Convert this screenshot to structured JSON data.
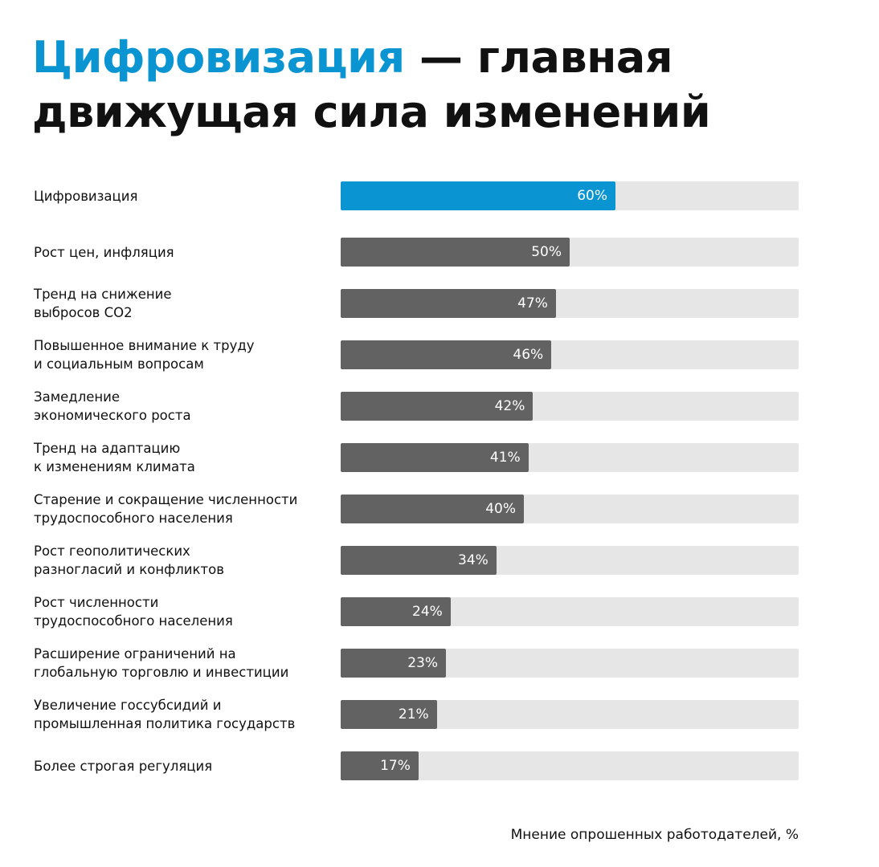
{
  "title": {
    "accent": "Цифровизация",
    "rest_line1": " — главная",
    "line2": "движущая сила изменений"
  },
  "chart_data": {
    "type": "bar",
    "orientation": "horizontal",
    "categories": [
      [
        "Цифровизация"
      ],
      [
        "Рост цен, инфляция"
      ],
      [
        "Тренд на снижение",
        "выбросов CO2"
      ],
      [
        "Повышенное внимание к труду",
        "и социальным вопросам"
      ],
      [
        "Замедление",
        "экономического роста"
      ],
      [
        "Тренд на адаптацию",
        "к изменениям климата"
      ],
      [
        "Старение и сокращение численности",
        "трудоспособного населения"
      ],
      [
        "Рост геополитических",
        "разногласий и конфликтов"
      ],
      [
        "Рост численности",
        "трудоспособного населения"
      ],
      [
        "Расширение ограничений на",
        "глобальную торговлю и инвестиции"
      ],
      [
        "Увеличение госсубсидий и",
        "промышленная политика государств"
      ],
      [
        "Более строгая регуляция"
      ]
    ],
    "values": [
      60,
      50,
      47,
      46,
      42,
      41,
      40,
      34,
      24,
      23,
      21,
      17
    ],
    "value_labels": [
      "60%",
      "50%",
      "47%",
      "46%",
      "42%",
      "41%",
      "40%",
      "34%",
      "24%",
      "23%",
      "21%",
      "17%"
    ],
    "xlim": [
      0,
      100
    ],
    "highlight_index": 0,
    "colors": {
      "highlight": "#0a95d2",
      "bar": "#626262",
      "track": "#e6e6e6"
    },
    "grid": false,
    "legend": "none"
  },
  "footer": {
    "source": "Мнение опрошенных работодателей, %"
  }
}
